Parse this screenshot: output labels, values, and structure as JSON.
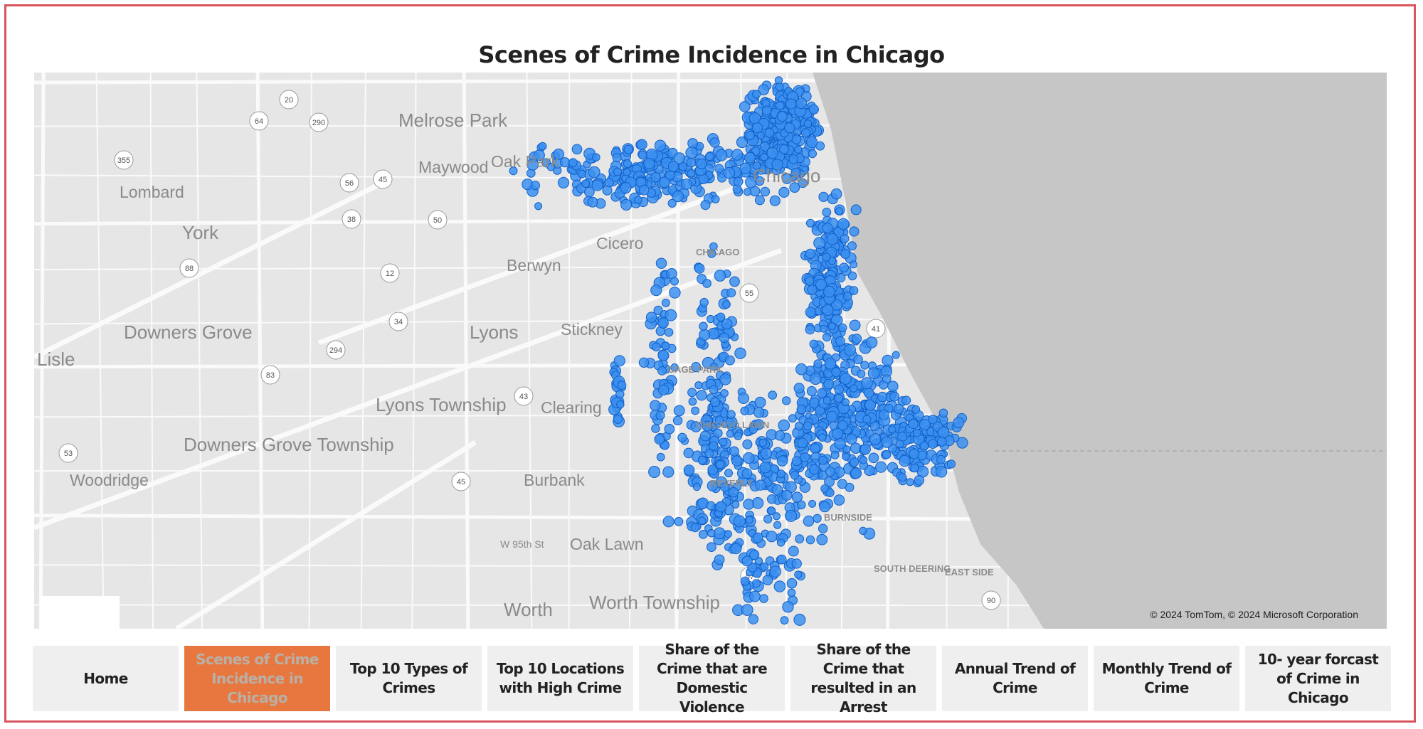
{
  "title": "Scenes of Crime Incidence in Chicago",
  "colors": {
    "border": "#d9545c",
    "active_tab": "#e8773f",
    "dot": "#3b8ff0",
    "dot_stroke": "#1160c8",
    "lake": "#c6c6c6",
    "land": "#e6e6e6"
  },
  "map": {
    "copyright": "© 2024 TomTom, © 2024 Microsoft Corporation",
    "place_labels": [
      "Melrose Park",
      "Oak Park",
      "Maywood",
      "Lombard",
      "York",
      "Cicero",
      "Berwyn",
      "Downers Grove",
      "Lisle",
      "Lyons",
      "Stickney",
      "Clearing",
      "Lyons Township",
      "Downers Grove Township",
      "Woodridge",
      "Burbank",
      "Oak Lawn",
      "Worth",
      "Worth Township",
      "Chicago",
      "W 95th St"
    ],
    "neighborhood_labels": [
      "GAGE PARK",
      "CHICAGO LAWN",
      "BEVERLY",
      "BURNSIDE",
      "SOUTH DEERING",
      "EAST SIDE",
      "CHICAGO"
    ],
    "route_shields": [
      "20",
      "64",
      "290",
      "355",
      "56",
      "45",
      "38",
      "88",
      "12",
      "34",
      "50",
      "55",
      "294",
      "83",
      "43",
      "53",
      "45",
      "57",
      "90",
      "41"
    ]
  },
  "nav": [
    {
      "label": "Home",
      "active": false
    },
    {
      "label": "Scenes of Crime Incidence in Chicago",
      "active": true
    },
    {
      "label": "Top 10 Types of Crimes",
      "active": false
    },
    {
      "label": "Top 10 Locations with High Crime",
      "active": false
    },
    {
      "label": "Share of the Crime that are Domestic Violence",
      "active": false
    },
    {
      "label": "Share of the Crime that resulted in an Arrest",
      "active": false
    },
    {
      "label": "Annual Trend of Crime",
      "active": false
    },
    {
      "label": "Monthly Trend of Crime",
      "active": false
    },
    {
      "label": "10- year forcast of Crime in Chicago",
      "active": false
    }
  ]
}
